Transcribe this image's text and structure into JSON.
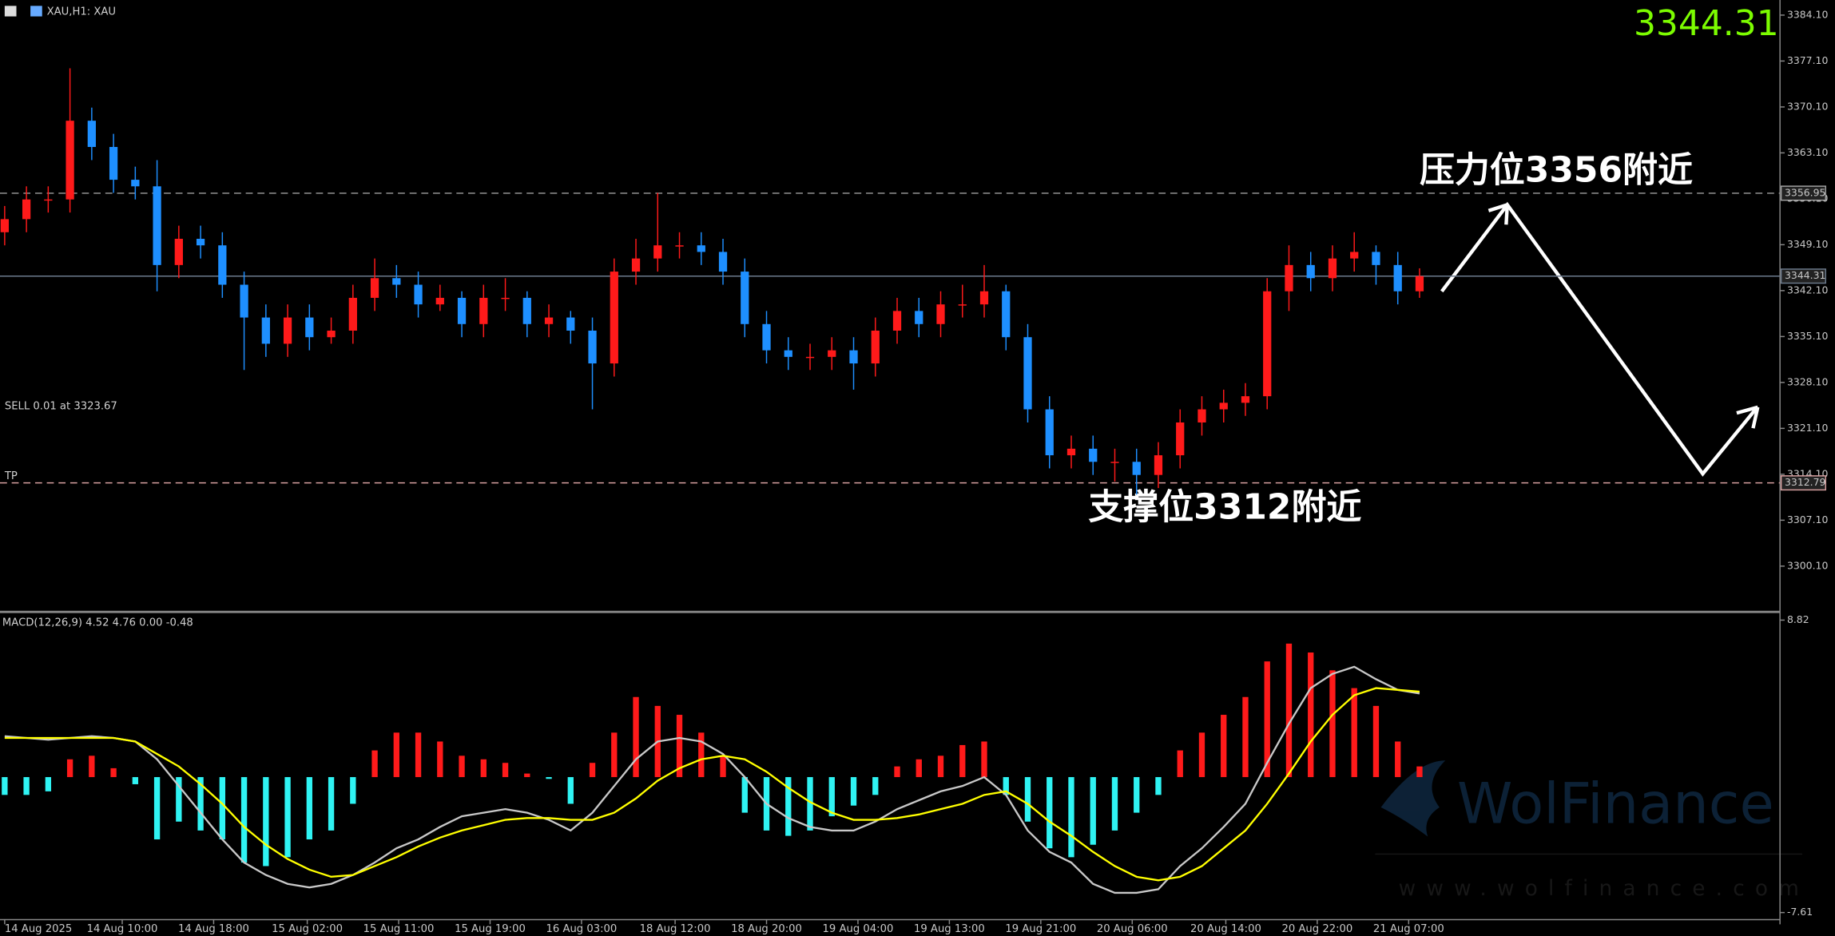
{
  "chart_data": [
    {
      "type": "candlestick",
      "title": "XAU,H1: XAU",
      "last_price": 3344.31,
      "open": [
        3351,
        3353,
        3356,
        3356,
        3368,
        3364,
        3359,
        3358,
        3346,
        3350,
        3349,
        3343,
        3338,
        3334,
        3338,
        3335,
        3336,
        3341,
        3344,
        3343,
        3340,
        3341,
        3337,
        3341,
        3341,
        3337,
        3338,
        3336,
        3331,
        3345,
        3347,
        3349,
        3349,
        3348,
        3345,
        3337,
        3333,
        3332,
        3332,
        3333,
        3331,
        3336,
        3339,
        3337,
        3340,
        3340,
        3342,
        3335,
        3324,
        3317,
        3318,
        3316,
        3316,
        3314,
        3317,
        3322,
        3324,
        3325,
        3326,
        3342,
        3346,
        3344,
        3347,
        3348,
        3346,
        3342
      ],
      "high": [
        3355,
        3358,
        3358,
        3376,
        3370,
        3366,
        3361,
        3362,
        3352,
        3352,
        3351,
        3345,
        3340,
        3340,
        3340,
        3338,
        3343,
        3347,
        3346,
        3345,
        3343,
        3342,
        3343,
        3344,
        3342,
        3340,
        3339,
        3338,
        3347,
        3350,
        3357,
        3351,
        3351,
        3350,
        3347,
        3339,
        3335,
        3334,
        3335,
        3335,
        3338,
        3341,
        3341,
        3342,
        3343,
        3346,
        3343,
        3337,
        3326,
        3320,
        3320,
        3318,
        3318,
        3319,
        3324,
        3326,
        3327,
        3328,
        3344,
        3349,
        3348,
        3349,
        3351,
        3349,
        3348,
        3345.5
      ],
      "low": [
        3349,
        3351,
        3354,
        3354,
        3362,
        3357,
        3356,
        3342,
        3344,
        3347,
        3341,
        3330,
        3332,
        3332,
        3333,
        3334,
        3334,
        3339,
        3341,
        3338,
        3339,
        3335,
        3335,
        3339,
        3335,
        3335,
        3334,
        3324,
        3329,
        3343,
        3345,
        3347,
        3346,
        3343,
        3335,
        3331,
        3330,
        3330,
        3330,
        3327,
        3329,
        3334,
        3335,
        3335,
        3338,
        3338,
        3333,
        3322,
        3315,
        3315,
        3314,
        3313,
        3311,
        3312,
        3315,
        3320,
        3322,
        3323,
        3324,
        3339,
        3342,
        3342,
        3345,
        3343,
        3340,
        3341
      ],
      "close": [
        3353,
        3356,
        3356,
        3368,
        3364,
        3359,
        3358,
        3346,
        3350,
        3349,
        3343,
        3338,
        3334,
        3338,
        3335,
        3336,
        3341,
        3344,
        3343,
        3340,
        3341,
        3337,
        3341,
        3341,
        3337,
        3338,
        3336,
        3331,
        3345,
        3347,
        3349,
        3349,
        3348,
        3345,
        3337,
        3333,
        3332,
        3332,
        3333,
        3331,
        3336,
        3339,
        3337,
        3340,
        3340,
        3342,
        3335,
        3324,
        3317,
        3318,
        3316,
        3316,
        3314,
        3317,
        3322,
        3324,
        3325,
        3326,
        3342,
        3346,
        3344,
        3347,
        3348,
        3346,
        3342,
        3344.31
      ],
      "up_color": "#ff1a1a",
      "down_color": "#1e8fff",
      "ylim": [
        3293.3,
        3386.4
      ],
      "yticks": [
        {
          "value": 3384.1,
          "label": "3384.10"
        },
        {
          "value": 3377.1,
          "label": "3377.10"
        },
        {
          "value": 3370.1,
          "label": "3370.10"
        },
        {
          "value": 3363.1,
          "label": "3363.10"
        },
        {
          "value": 3356.1,
          "label": "3356.10"
        },
        {
          "value": 3349.1,
          "label": "3349.10"
        },
        {
          "value": 3342.1,
          "label": "3342.10"
        },
        {
          "value": 3335.1,
          "label": "3335.10"
        },
        {
          "value": 3328.1,
          "label": "3328.10"
        },
        {
          "value": 3321.1,
          "label": "3321.10"
        },
        {
          "value": 3314.1,
          "label": "3314.10"
        },
        {
          "value": 3307.1,
          "label": "3307.10"
        },
        {
          "value": 3300.1,
          "label": "3300.10"
        }
      ],
      "levels": [
        {
          "value": 3356.95,
          "color": "#a0a0a0",
          "dashed": true
        },
        {
          "value": 3344.31,
          "color": "#6c7a8c",
          "dashed": false
        },
        {
          "value": 3312.79,
          "color": "#d8a0a0",
          "dashed": true
        }
      ],
      "annotations": {
        "order": "SELL 0.01 at 3323.67",
        "tp": "TP",
        "resistance": "压力位3356附近",
        "support": "支撑位3312附近"
      }
    },
    {
      "type": "macd",
      "title": "MACD(12,26,9) 4.52 4.76 0.00 -0.48",
      "histogram": [
        -1,
        -1,
        -0.8,
        1,
        1.2,
        0.5,
        -0.4,
        -3.5,
        -2.5,
        -3,
        -3.5,
        -4.8,
        -5,
        -4.5,
        -3.5,
        -3,
        -1.5,
        1.5,
        2.5,
        2.5,
        2,
        1.2,
        1,
        0.8,
        0.2,
        -0.1,
        -1.5,
        0.8,
        2.5,
        4.5,
        4,
        3.5,
        2.5,
        1.2,
        -2,
        -3,
        -3.3,
        -3,
        -2.2,
        -1.6,
        -1,
        0.6,
        1,
        1.2,
        1.8,
        2,
        -1,
        -2.5,
        -4,
        -4.5,
        -3.8,
        -3,
        -2,
        -1,
        1.5,
        2.5,
        3.5,
        4.5,
        6.5,
        7.5,
        7,
        6,
        5,
        4,
        2,
        0.6
      ],
      "macd": [
        2.3,
        2.2,
        2.1,
        2.2,
        2.3,
        2.2,
        2,
        1,
        -0.5,
        -2,
        -3.5,
        -4.8,
        -5.5,
        -6,
        -6.2,
        -6,
        -5.5,
        -4.8,
        -4,
        -3.5,
        -2.8,
        -2.2,
        -2,
        -1.8,
        -2,
        -2.4,
        -3,
        -2,
        -0.5,
        1,
        2,
        2.2,
        2,
        1.3,
        0,
        -1.5,
        -2.3,
        -2.8,
        -3,
        -3,
        -2.5,
        -1.8,
        -1.3,
        -0.8,
        -0.5,
        0,
        -1,
        -3,
        -4.2,
        -4.8,
        -6,
        -6.5,
        -6.5,
        -6.3,
        -5,
        -4,
        -2.8,
        -1.5,
        0.8,
        3,
        5,
        5.8,
        6.2,
        5.5,
        4.9,
        4.7
      ],
      "signal": [
        2.2,
        2.2,
        2.2,
        2.2,
        2.2,
        2.2,
        2,
        1.3,
        0.6,
        -0.4,
        -1.5,
        -2.8,
        -3.8,
        -4.6,
        -5.2,
        -5.6,
        -5.5,
        -5,
        -4.5,
        -3.9,
        -3.4,
        -3,
        -2.7,
        -2.4,
        -2.3,
        -2.3,
        -2.4,
        -2.4,
        -2,
        -1.2,
        -0.2,
        0.5,
        1,
        1.2,
        1,
        0.3,
        -0.6,
        -1.4,
        -2,
        -2.4,
        -2.4,
        -2.3,
        -2.1,
        -1.8,
        -1.5,
        -1,
        -0.8,
        -1.5,
        -2.5,
        -3.3,
        -4.2,
        -5,
        -5.6,
        -5.8,
        -5.6,
        -5,
        -4,
        -3,
        -1.5,
        0.2,
        2,
        3.5,
        4.6,
        5,
        4.9,
        4.8
      ],
      "pos_color": "#ff1a1a",
      "neg_color": "#2ff3f3",
      "macd_color": "#c8c8c8",
      "signal_color": "#ffff00",
      "ylim": [
        -7.94,
        9.15
      ],
      "yticks": [
        8.82,
        -7.61
      ],
      "xticks": [
        {
          "value": 0,
          "label": "14 Aug 2025"
        },
        {
          "value": 5.4,
          "label": "14 Aug 10:00"
        },
        {
          "value": 9.6,
          "label": "14 Aug 18:00"
        },
        {
          "value": 13.9,
          "label": "15 Aug 02:00"
        },
        {
          "value": 18.1,
          "label": "15 Aug 11:00"
        },
        {
          "value": 22.3,
          "label": "15 Aug 19:00"
        },
        {
          "value": 26.5,
          "label": "16 Aug 03:00"
        },
        {
          "value": 30.8,
          "label": "18 Aug 12:00"
        },
        {
          "value": 35,
          "label": "18 Aug 20:00"
        },
        {
          "value": 39.2,
          "label": "19 Aug 04:00"
        },
        {
          "value": 43.4,
          "label": "19 Aug 13:00"
        },
        {
          "value": 47.6,
          "label": "19 Aug 21:00"
        },
        {
          "value": 51.8,
          "label": "20 Aug 06:00"
        },
        {
          "value": 56.1,
          "label": "20 Aug 14:00"
        },
        {
          "value": 60.3,
          "label": "20 Aug 22:00"
        },
        {
          "value": 64.5,
          "label": "21 Aug 07:00"
        }
      ]
    }
  ],
  "watermark": {
    "brand": "WolFinance",
    "url": "www.wolfinance.com"
  }
}
